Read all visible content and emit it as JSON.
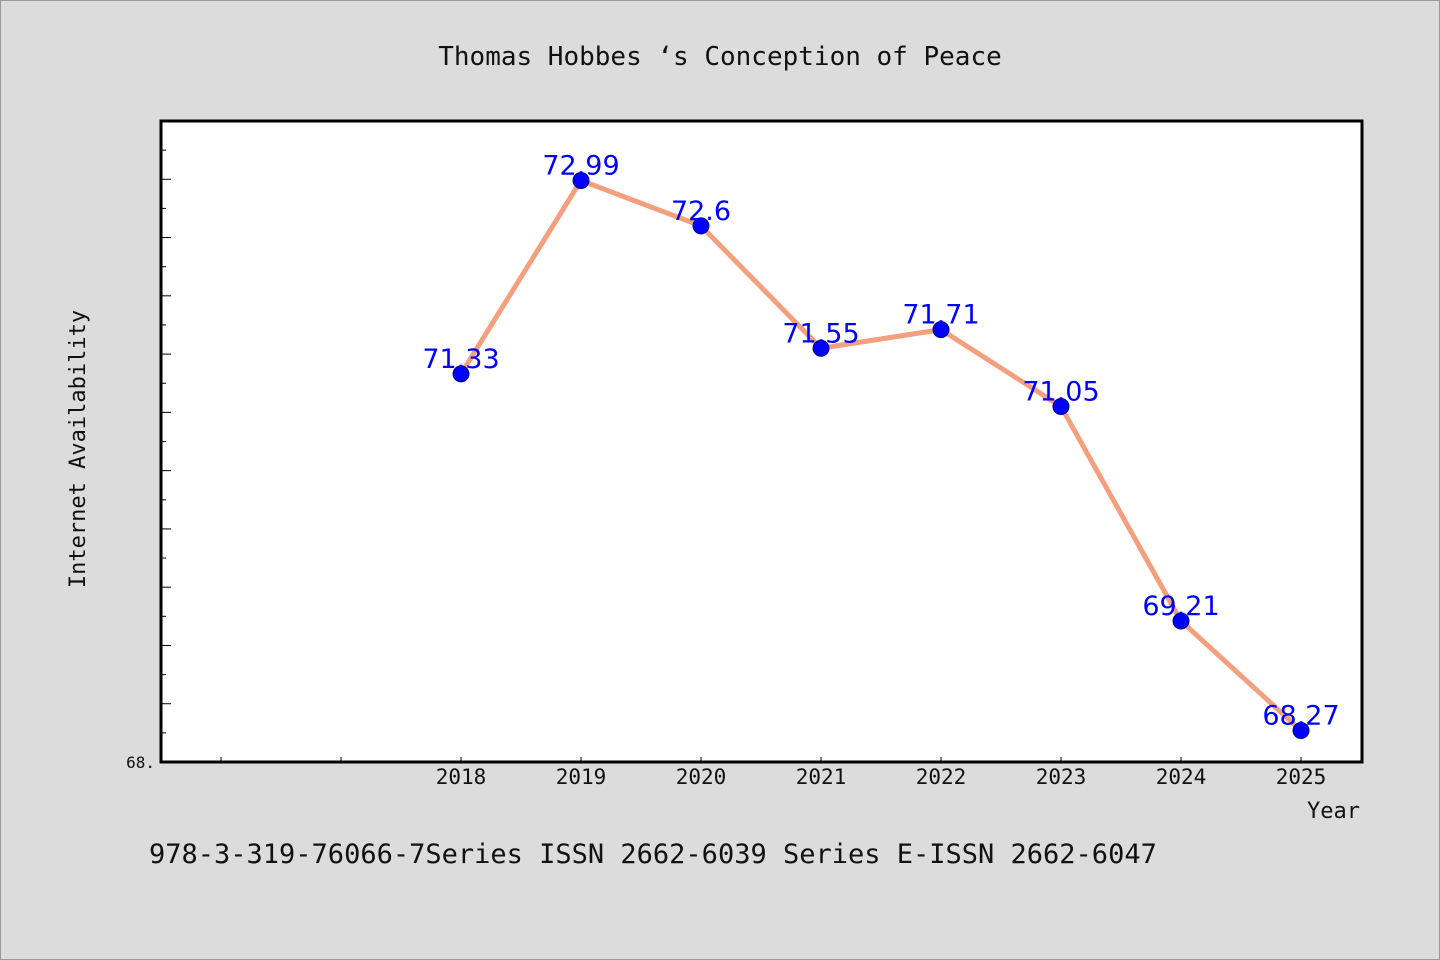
{
  "chart_data": {
    "type": "line",
    "title": "Thomas Hobbes ‘s Conception of Peace",
    "xlabel": "Year",
    "ylabel": "Internet Availability",
    "x": [
      "2018",
      "2019",
      "2020",
      "2021",
      "2022",
      "2023",
      "2024",
      "2025"
    ],
    "series": [
      {
        "values": [
          71.33,
          72.99,
          72.6,
          71.55,
          71.71,
          71.05,
          69.21,
          68.27
        ],
        "labels": [
          "71.33",
          "72.99",
          "72.6",
          "71.55",
          "71.71",
          "71.05",
          "69.21",
          "68.27"
        ],
        "line_color": "#f4a07f",
        "marker_color": "#0000ff"
      }
    ],
    "ylim": [
      68.0,
      73.5
    ],
    "y_tick_label": "68.",
    "grid": false,
    "legend": "none"
  },
  "footer": {
    "text": "978-3-319-76066-7Series ISSN 2662-6039 Series E-ISSN 2662-6047"
  },
  "colors": {
    "background": "#dcdcdc",
    "plot_background": "#ffffff",
    "axis": "#000000"
  }
}
